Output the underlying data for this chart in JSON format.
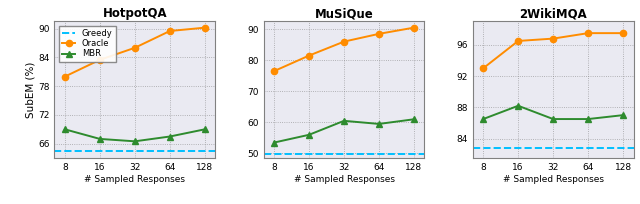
{
  "x": [
    8,
    16,
    32,
    64,
    128
  ],
  "x_positions": [
    0,
    1,
    2,
    3,
    4
  ],
  "x_tick_labels": [
    "8",
    "16",
    "32",
    "64",
    "128"
  ],
  "panels": [
    {
      "title": "HotpotQA",
      "ylabel": "SubEM (%)",
      "oracle": [
        80.0,
        83.5,
        86.0,
        89.5,
        90.2
      ],
      "mbr": [
        69.0,
        67.0,
        66.5,
        67.5,
        69.0
      ],
      "greedy": 64.5,
      "ylim": [
        63.0,
        91.5
      ],
      "yticks": [
        66,
        72,
        78,
        84,
        90
      ]
    },
    {
      "title": "MuSiQue",
      "ylabel": "",
      "oracle": [
        76.5,
        81.5,
        86.0,
        88.5,
        90.5
      ],
      "mbr": [
        53.5,
        56.0,
        60.5,
        59.5,
        61.0
      ],
      "greedy": 49.8,
      "ylim": [
        48.5,
        92.5
      ],
      "yticks": [
        50,
        60,
        70,
        80,
        90
      ]
    },
    {
      "title": "2WikiMQA",
      "ylabel": "",
      "oracle": [
        93.0,
        96.5,
        96.8,
        97.5,
        97.5
      ],
      "mbr": [
        86.5,
        88.2,
        86.5,
        86.5,
        87.0
      ],
      "greedy": 82.8,
      "ylim": [
        81.5,
        99.0
      ],
      "yticks": [
        84,
        88,
        92,
        96
      ]
    }
  ],
  "oracle_color": "#FF8C00",
  "mbr_color": "#2E8B2E",
  "greedy_color": "#00BFFF",
  "xlabel": "# Sampled Responses",
  "marker_oracle": "o",
  "marker_mbr": "^",
  "linewidth": 1.4,
  "markersize": 4.5,
  "bg_color": "#eaeaf2"
}
